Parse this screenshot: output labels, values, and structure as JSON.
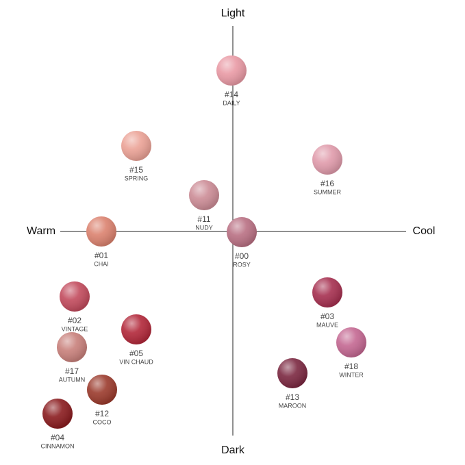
{
  "axes": {
    "top": "Light",
    "bottom": "Dark",
    "left": "Warm",
    "right": "Cool"
  },
  "nodes": [
    {
      "code": "#14",
      "name": "DAILY",
      "color": "#e99aa5"
    },
    {
      "code": "#15",
      "name": "SPRING",
      "color": "#eba296"
    },
    {
      "code": "#16",
      "name": "SUMMER",
      "color": "#e09bab"
    },
    {
      "code": "#11",
      "name": "NUDY",
      "color": "#cc8c96"
    },
    {
      "code": "#01",
      "name": "CHAI",
      "color": "#db826f"
    },
    {
      "code": "#00",
      "name": "ROSY",
      "color": "#b97083"
    },
    {
      "code": "#02",
      "name": "VINTAGE",
      "color": "#c24b5d"
    },
    {
      "code": "#03",
      "name": "MAUVE",
      "color": "#a63050"
    },
    {
      "code": "#05",
      "name": "VIN CHAUD",
      "color": "#b2283a"
    },
    {
      "code": "#17",
      "name": "AUTUMN",
      "color": "#c8807b"
    },
    {
      "code": "#18",
      "name": "WINTER",
      "color": "#c46892"
    },
    {
      "code": "#13",
      "name": "MAROON",
      "color": "#7b2841"
    },
    {
      "code": "#12",
      "name": "COCO",
      "color": "#9b3b2d"
    },
    {
      "code": "#04",
      "name": "CINNAMON",
      "color": "#8a1c1f"
    }
  ]
}
